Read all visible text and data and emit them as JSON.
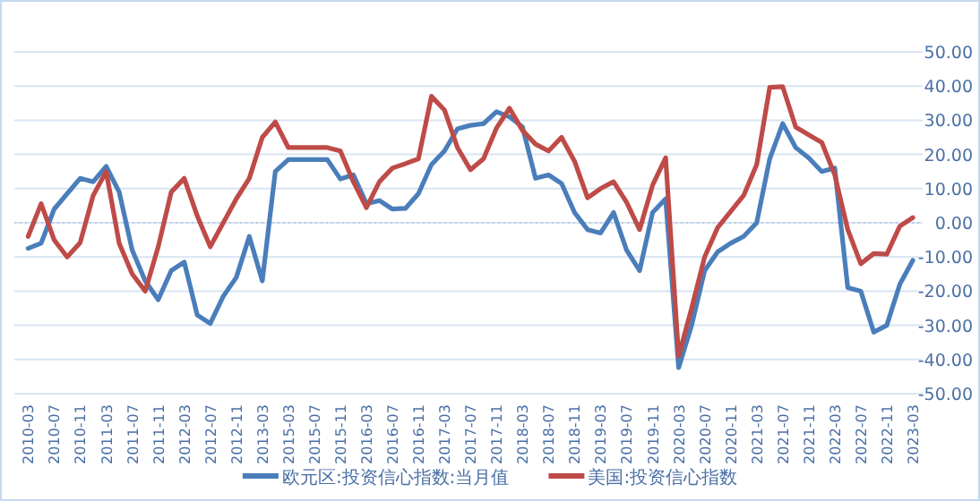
{
  "chart_data": {
    "type": "line",
    "categories": [
      "2010-03",
      null,
      "2010-07",
      null,
      "2010-11",
      null,
      "2011-03",
      null,
      "2011-07",
      null,
      "2011-11",
      null,
      "2012-03",
      null,
      "2012-07",
      null,
      "2012-11",
      null,
      "2013-03",
      null,
      "2015-03",
      null,
      "2015-07",
      null,
      "2015-11",
      null,
      "2016-03",
      null,
      "2016-07",
      null,
      "2016-11",
      null,
      "2017-03",
      null,
      "2017-07",
      null,
      "2017-11",
      null,
      "2018-03",
      null,
      "2018-07",
      null,
      "2018-11",
      null,
      "2019-03",
      null,
      "2019-07",
      null,
      "2019-11",
      null,
      "2020-03",
      null,
      "2020-07",
      null,
      "2020-11",
      null,
      "2021-03",
      null,
      "2021-07",
      null,
      "2021-11",
      null,
      "2022-03",
      null,
      "2022-07",
      null,
      "2022-11",
      null,
      "2023-03"
    ],
    "series": [
      {
        "name": "欧元区:投资信心指数:当月值",
        "color": "#4a7ebb",
        "values": [
          -7.5,
          -6,
          4,
          8.5,
          13,
          12,
          16.5,
          9,
          -8,
          -17,
          -22.5,
          -14,
          -11.5,
          -27,
          -29.5,
          -21.5,
          -16,
          -4,
          -17,
          15,
          18.5,
          18.5,
          18.5,
          18.5,
          12.8,
          14,
          5.6,
          6.5,
          4,
          4.2,
          8.5,
          17,
          21,
          27.5,
          28.5,
          29,
          32.5,
          31,
          28,
          13,
          14,
          11.5,
          3,
          -2,
          -3,
          3,
          -8,
          -14,
          3,
          7,
          -42.4,
          -30,
          -14,
          -8.5,
          -6,
          -4,
          0,
          18.7,
          29,
          22,
          19,
          15,
          16,
          -19,
          -20,
          -32,
          -30,
          -18,
          -11
        ]
      },
      {
        "name": "美国:投资信心指数",
        "color": "#be4b48",
        "values": [
          -4,
          5.6,
          -5,
          -10,
          -5.8,
          8,
          15,
          -6,
          -15,
          -20,
          -7,
          9,
          13,
          2,
          -7,
          0,
          7,
          13,
          25,
          29.5,
          22,
          22,
          22,
          22,
          21,
          12,
          4.4,
          12,
          16,
          17.3,
          18.7,
          37,
          33,
          22,
          15.5,
          18.7,
          27.7,
          33.5,
          27,
          23,
          21,
          25,
          18,
          7.3,
          10,
          12,
          6,
          -2,
          11,
          19,
          -39,
          -25,
          -10,
          -1.4,
          3.3,
          8,
          17,
          39.6,
          39.8,
          28,
          25.7,
          23.5,
          14,
          -2,
          -12,
          -9,
          -9.2,
          -1,
          1.5
        ]
      }
    ],
    "ylim": [
      -50,
      50
    ],
    "yticks": [
      {
        "value": 50,
        "label": "50.00"
      },
      {
        "value": 40,
        "label": "40.00"
      },
      {
        "value": 30,
        "label": "30.00"
      },
      {
        "value": 20,
        "label": "20.00"
      },
      {
        "value": 10,
        "label": "10.00"
      },
      {
        "value": 0,
        "label": "0.00"
      },
      {
        "value": -10,
        "label": "-10.00"
      },
      {
        "value": -20,
        "label": "-20.00"
      },
      {
        "value": -30,
        "label": "-30.00"
      },
      {
        "value": -40,
        "label": "-40.00"
      },
      {
        "value": -50,
        "label": "-50.00"
      }
    ],
    "ref_lines": [
      {
        "axis": "y",
        "value": 0,
        "color": "#b8cce4",
        "line_style": "dotted"
      }
    ],
    "grid": "y",
    "legend": "bottom",
    "marker": "none",
    "line_style": "solid"
  }
}
